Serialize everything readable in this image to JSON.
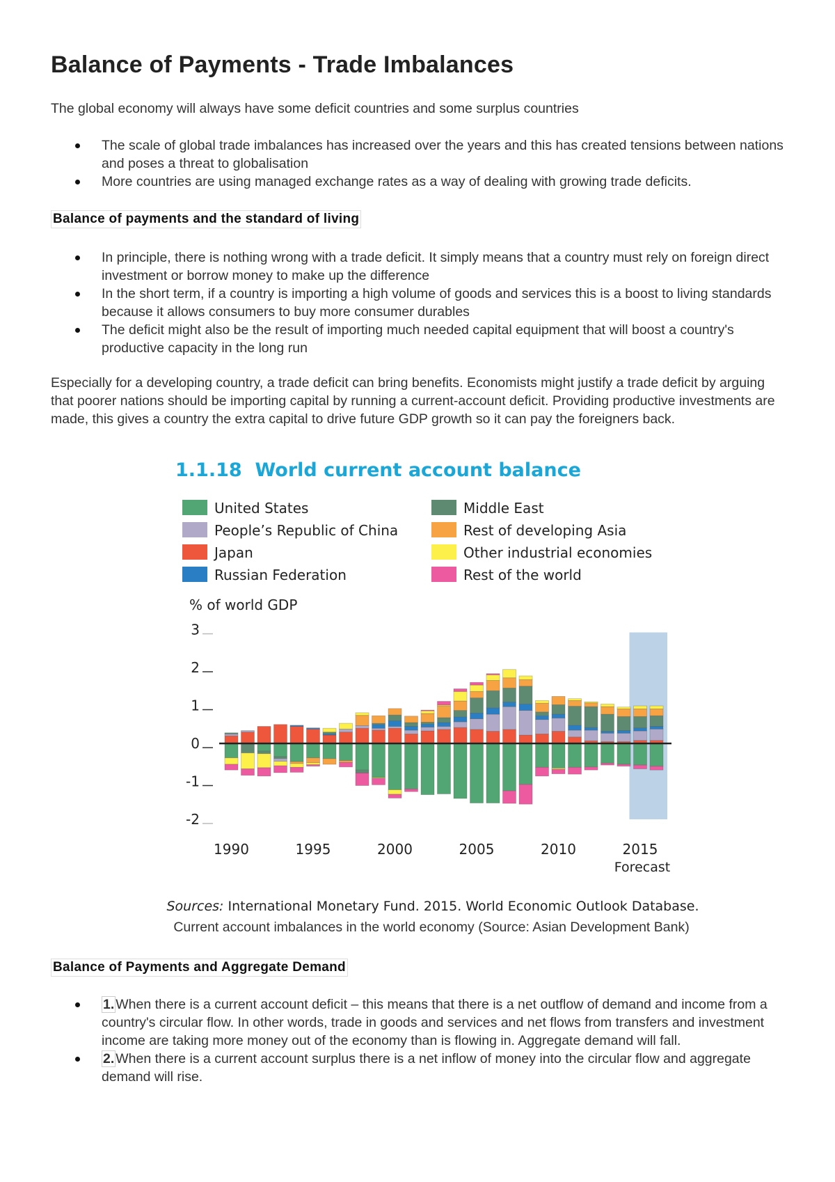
{
  "title": "Balance of Payments - Trade Imbalances",
  "intro": "The global economy will always have some deficit countries and some surplus countries",
  "intro_bullets": [
    "The scale of global trade imbalances has increased over the years and this has created tensions between nations and poses a threat to globalisation",
    "More countries are using managed exchange rates as a way of dealing with growing trade deficits."
  ],
  "section1": {
    "heading": "Balance of payments and the standard of living",
    "bullets": [
      "In principle, there is nothing wrong with a trade deficit. It simply means that a country must rely on foreign direct investment or borrow money to make up the difference",
      "In the short term, if a country is importing a high volume of goods and services this is a boost to living standards because it allows consumers to buy more consumer durables",
      "The deficit might also be the result of importing much needed capital equipment that will boost a country's productive capacity in the long run"
    ],
    "paragraph": "Especially for a developing country, a trade deficit can bring benefits. Economists might justify a trade deficit by arguing that poorer nations should be importing capital by running a current-account deficit. Providing productive investments are made, this gives a country the extra capital to drive future GDP growth so it can pay the foreigners back."
  },
  "chart_data": {
    "type": "bar",
    "stacked": true,
    "title": "1.1.18  World current account balance",
    "ylabel": "% of world GDP",
    "ylim": [
      -2,
      3
    ],
    "yticks": [
      "3",
      "2",
      "1",
      "0",
      "-1",
      "-2"
    ],
    "x": [
      1990,
      1991,
      1992,
      1993,
      1994,
      1995,
      1996,
      1997,
      1998,
      1999,
      2000,
      2001,
      2002,
      2003,
      2004,
      2005,
      2006,
      2007,
      2008,
      2009,
      2010,
      2011,
      2012,
      2013,
      2014,
      2015,
      2016
    ],
    "xtick_labels": [
      "1990",
      "1995",
      "2000",
      "2005",
      "2010",
      "2015"
    ],
    "forecast_label": "Forecast",
    "forecast_years": [
      2015,
      2016
    ],
    "forecast_color": "#bcd2e6",
    "legend_placement": "top",
    "title_color": "#1aa7d8",
    "series": [
      {
        "name": "United States",
        "color": "#52a673",
        "values": [
          -0.38,
          0,
          -0.2,
          -0.35,
          -0.48,
          -0.38,
          -0.4,
          -0.45,
          -0.7,
          -0.9,
          -1.22,
          -1.2,
          -1.35,
          -1.33,
          -1.45,
          -1.57,
          -1.57,
          -1.25,
          -1.08,
          -0.63,
          -0.65,
          -0.63,
          -0.62,
          -0.52,
          -0.55,
          -0.57,
          -0.6
        ]
      },
      {
        "name": "People’s Republic of China",
        "color": "#b0aac8",
        "values": [
          0.05,
          0.04,
          0,
          -0.07,
          0,
          0,
          0,
          0.08,
          0.07,
          0.05,
          0.05,
          0.1,
          0.1,
          0.08,
          0.15,
          0.28,
          0.45,
          0.6,
          0.65,
          0.38,
          0.35,
          0.18,
          0.28,
          0.22,
          0.22,
          0.25,
          0.3
        ]
      },
      {
        "name": "Japan",
        "color": "#ef573c",
        "values": [
          0.2,
          0.3,
          0.45,
          0.5,
          0.45,
          0.38,
          0.22,
          0.3,
          0.4,
          0.35,
          0.4,
          0.25,
          0.33,
          0.37,
          0.42,
          0.37,
          0.32,
          0.37,
          0.22,
          0.25,
          0.32,
          0.17,
          0.07,
          0.05,
          0.05,
          0.08,
          0.08
        ]
      },
      {
        "name": "Russian Federation",
        "color": "#2a7fc4",
        "values": [
          0,
          0,
          0,
          0,
          0.03,
          0.03,
          0.03,
          0,
          0,
          0.1,
          0.15,
          0.1,
          0.08,
          0.1,
          0.13,
          0.15,
          0.17,
          0.12,
          0.17,
          0.1,
          0.1,
          0.13,
          0.07,
          0.05,
          0.07,
          0.08,
          0.07
        ]
      },
      {
        "name": "Middle East",
        "color": "#5f8a72",
        "values": [
          0.03,
          -0.25,
          -0.07,
          -0.05,
          0,
          0,
          0.05,
          0,
          -0.08,
          0.03,
          0.15,
          0.1,
          0.05,
          0.13,
          0.17,
          0.4,
          0.45,
          0.37,
          0.47,
          0.1,
          0.25,
          0.5,
          0.55,
          0.45,
          0.37,
          0.3,
          0.28
        ]
      },
      {
        "name": "Rest of developing Asia",
        "color": "#f7a343",
        "values": [
          0,
          0,
          0,
          0,
          -0.05,
          -0.13,
          -0.15,
          -0.05,
          0.27,
          0.2,
          0.17,
          0.17,
          0.23,
          0.3,
          0.25,
          0.17,
          0.27,
          0.27,
          0.17,
          0.23,
          0.22,
          0.15,
          0.1,
          0.2,
          0.2,
          0.2,
          0.18
        ]
      },
      {
        "name": "Other industrial economies",
        "color": "#fdf04a",
        "values": [
          -0.17,
          -0.42,
          -0.37,
          -0.12,
          -0.1,
          -0.05,
          0.1,
          0.15,
          0.07,
          -0.02,
          -0.12,
          0,
          0.07,
          0.03,
          0.25,
          0.17,
          0.15,
          0.22,
          0.1,
          0.07,
          -0.03,
          0.05,
          0.03,
          0.07,
          0.05,
          0.08,
          0.08
        ]
      },
      {
        "name": "Rest of the world",
        "color": "#ee5aa0",
        "values": [
          -0.15,
          -0.17,
          -0.22,
          -0.18,
          -0.13,
          -0.04,
          0,
          -0.12,
          -0.33,
          -0.17,
          -0.1,
          -0.07,
          0.02,
          0.1,
          0.07,
          0.07,
          0.03,
          -0.33,
          -0.52,
          -0.23,
          -0.12,
          -0.18,
          -0.08,
          -0.05,
          -0.05,
          -0.1,
          -0.1
        ]
      }
    ],
    "sources_label": "Sources:",
    "sources_text": " International Monetary Fund. 2015. World Economic Outlook Database."
  },
  "chart_caption": "Current account imbalances in the world economy (Source: Asian Development Bank)",
  "section2": {
    "heading": "Balance of Payments and Aggregate Demand",
    "bullets": [
      {
        "num": "1.",
        "text": "When there is a current account deficit – this means that there is a net outflow of demand and income from a country's circular flow. In other words, trade in goods and services and net flows from transfers and investment income are taking more money out of the economy than is flowing in. Aggregate demand will fall."
      },
      {
        "num": "2.",
        "text": "When there is a current account surplus there is a net inflow of money into the circular flow and aggregate demand will rise."
      }
    ]
  }
}
